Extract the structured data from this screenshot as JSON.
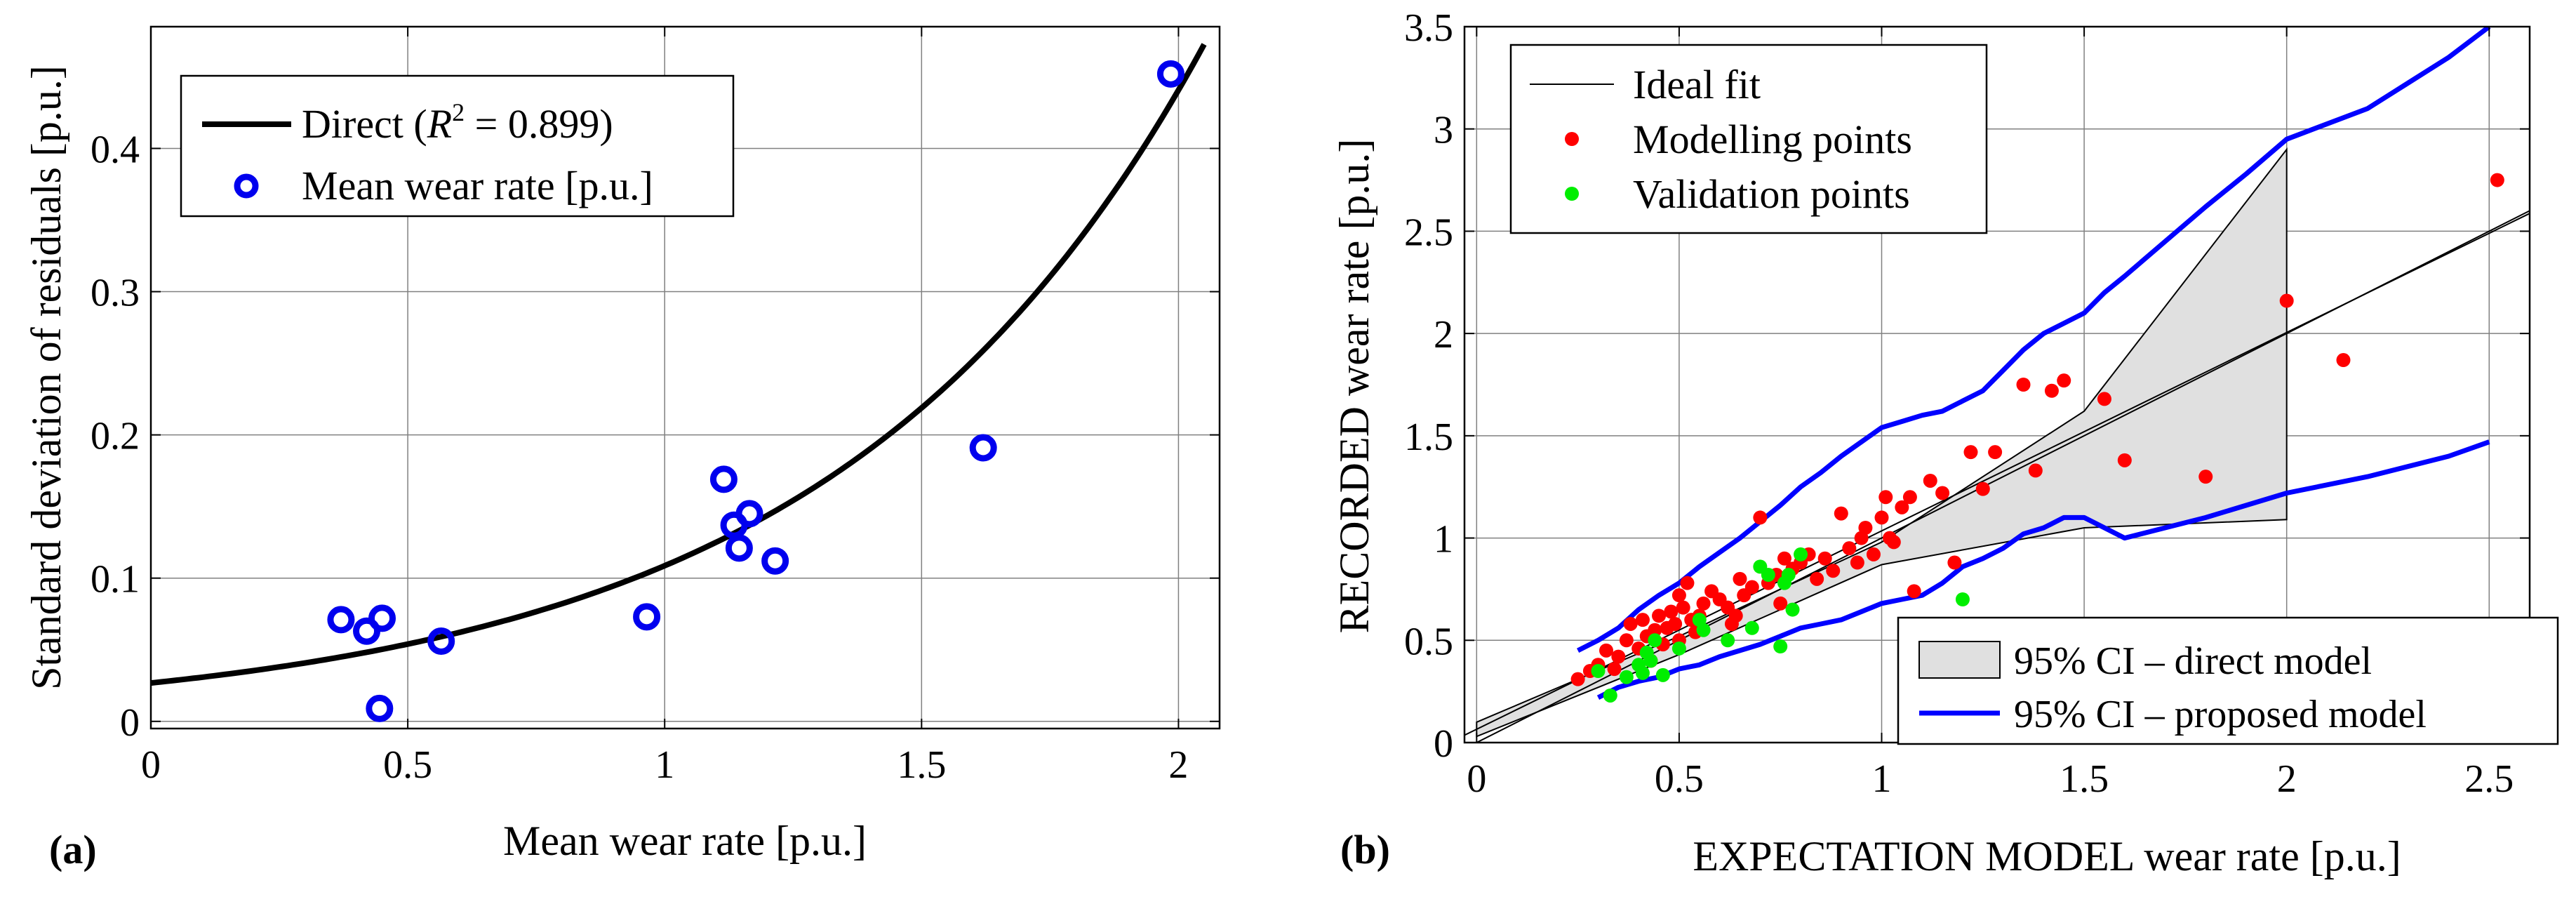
{
  "chart_data": [
    {
      "type": "scatter",
      "panel_label": "(a)",
      "xlabel": "Mean wear rate [p.u.]",
      "ylabel": "Standard deviation of residuals [p.u.]",
      "xlim": [
        0,
        2.08
      ],
      "ylim": [
        -0.005,
        0.485
      ],
      "grid": true,
      "xticks": [
        0,
        0.5,
        1,
        1.5,
        2
      ],
      "xtick_labels": [
        "0",
        "0.5",
        "1",
        "1.5",
        "2"
      ],
      "yticks": [
        0,
        0.1,
        0.2,
        0.3,
        0.4
      ],
      "ytick_labels": [
        "0",
        "0.1",
        "0.2",
        "0.3",
        "0.4"
      ],
      "legend_position": "top-left",
      "legend": {
        "fit_prefix": "Direct (",
        "fit_r": "R",
        "fit_sup": "2",
        "fit_suffix": " = 0.899)",
        "points": "Mean wear rate [p.u.]"
      },
      "fit_curve": {
        "a": 0.0268,
        "b": 1.4,
        "x_range": [
          0,
          2.05
        ]
      },
      "points": [
        [
          0.37,
          0.071
        ],
        [
          0.42,
          0.063
        ],
        [
          0.45,
          0.072
        ],
        [
          0.445,
          0.009
        ],
        [
          0.565,
          0.056
        ],
        [
          0.965,
          0.073
        ],
        [
          1.115,
          0.169
        ],
        [
          1.145,
          0.121
        ],
        [
          1.135,
          0.137
        ],
        [
          1.165,
          0.145
        ],
        [
          1.215,
          0.112
        ],
        [
          1.62,
          0.191
        ],
        [
          1.985,
          0.452
        ]
      ],
      "point_color": "#0000ee"
    },
    {
      "type": "scatter",
      "panel_label": "(b)",
      "xlabel": "EXPECTATION MODEL wear rate [p.u.]",
      "ylabel": "RECORDED  wear rate [p.u.]",
      "xlim": [
        -0.03,
        2.6
      ],
      "ylim": [
        0,
        3.5
      ],
      "grid": true,
      "xticks": [
        0,
        0.5,
        1,
        1.5,
        2,
        2.5
      ],
      "xtick_labels": [
        "0",
        "0.5",
        "1",
        "1.5",
        "2",
        "2.5"
      ],
      "yticks": [
        0,
        0.5,
        1,
        1.5,
        2,
        2.5,
        3,
        3.5
      ],
      "ytick_labels": [
        "0",
        "0.5",
        "1",
        "1.5",
        "2",
        "2.5",
        "3",
        "3.5"
      ],
      "legend_top": {
        "position": "top-left",
        "ideal": "Ideal fit",
        "modelling": "Modelling points",
        "validation": "Validation points"
      },
      "legend_bottom": {
        "position": "bottom-right",
        "ci_direct": "95% CI – direct model",
        "ci_proposed": "95% CI – proposed model"
      },
      "ideal_line": {
        "slope": 1.0,
        "intercept": 0.0
      },
      "center_line": {
        "slope": 0.97,
        "intercept": 0.065
      },
      "ci_direct_upper": [
        [
          0,
          0.1
        ],
        [
          0.5,
          0.52
        ],
        [
          1,
          0.98
        ],
        [
          1.5,
          1.62
        ],
        [
          2,
          2.9
        ]
      ],
      "ci_direct_lower": [
        [
          0,
          0.03
        ],
        [
          0.5,
          0.43
        ],
        [
          1,
          0.87
        ],
        [
          1.5,
          1.05
        ],
        [
          2,
          1.09
        ]
      ],
      "ci_proposed_upper": [
        [
          0.25,
          0.45
        ],
        [
          0.3,
          0.5
        ],
        [
          0.35,
          0.56
        ],
        [
          0.4,
          0.65
        ],
        [
          0.45,
          0.72
        ],
        [
          0.5,
          0.78
        ],
        [
          0.55,
          0.86
        ],
        [
          0.6,
          0.93
        ],
        [
          0.65,
          1.0
        ],
        [
          0.7,
          1.08
        ],
        [
          0.75,
          1.16
        ],
        [
          0.8,
          1.25
        ],
        [
          0.85,
          1.32
        ],
        [
          0.9,
          1.4
        ],
        [
          0.95,
          1.47
        ],
        [
          1.0,
          1.54
        ],
        [
          1.05,
          1.57
        ],
        [
          1.1,
          1.6
        ],
        [
          1.15,
          1.62
        ],
        [
          1.2,
          1.67
        ],
        [
          1.25,
          1.72
        ],
        [
          1.3,
          1.82
        ],
        [
          1.35,
          1.92
        ],
        [
          1.4,
          2.0
        ],
        [
          1.45,
          2.05
        ],
        [
          1.5,
          2.1
        ],
        [
          1.55,
          2.2
        ],
        [
          1.6,
          2.28
        ],
        [
          1.7,
          2.45
        ],
        [
          1.8,
          2.62
        ],
        [
          1.9,
          2.78
        ],
        [
          2.0,
          2.95
        ],
        [
          2.2,
          3.1
        ],
        [
          2.4,
          3.35
        ],
        [
          2.5,
          3.5
        ]
      ],
      "ci_proposed_lower": [
        [
          0.3,
          0.22
        ],
        [
          0.35,
          0.27
        ],
        [
          0.4,
          0.3
        ],
        [
          0.45,
          0.32
        ],
        [
          0.5,
          0.36
        ],
        [
          0.55,
          0.38
        ],
        [
          0.6,
          0.42
        ],
        [
          0.65,
          0.45
        ],
        [
          0.7,
          0.48
        ],
        [
          0.75,
          0.52
        ],
        [
          0.8,
          0.56
        ],
        [
          0.85,
          0.58
        ],
        [
          0.9,
          0.6
        ],
        [
          0.95,
          0.64
        ],
        [
          1.0,
          0.68
        ],
        [
          1.05,
          0.7
        ],
        [
          1.1,
          0.72
        ],
        [
          1.15,
          0.78
        ],
        [
          1.2,
          0.86
        ],
        [
          1.25,
          0.9
        ],
        [
          1.3,
          0.95
        ],
        [
          1.35,
          1.02
        ],
        [
          1.4,
          1.05
        ],
        [
          1.45,
          1.1
        ],
        [
          1.5,
          1.1
        ],
        [
          1.55,
          1.05
        ],
        [
          1.6,
          1.0
        ],
        [
          1.7,
          1.05
        ],
        [
          1.8,
          1.1
        ],
        [
          2.0,
          1.22
        ],
        [
          2.2,
          1.3
        ],
        [
          2.4,
          1.4
        ],
        [
          2.5,
          1.47
        ]
      ],
      "modelling_points": [
        [
          0.25,
          0.31
        ],
        [
          0.28,
          0.35
        ],
        [
          0.3,
          0.38
        ],
        [
          0.32,
          0.45
        ],
        [
          0.34,
          0.36
        ],
        [
          0.35,
          0.42
        ],
        [
          0.37,
          0.5
        ],
        [
          0.38,
          0.58
        ],
        [
          0.4,
          0.46
        ],
        [
          0.41,
          0.6
        ],
        [
          0.42,
          0.52
        ],
        [
          0.43,
          0.4
        ],
        [
          0.44,
          0.55
        ],
        [
          0.45,
          0.62
        ],
        [
          0.46,
          0.48
        ],
        [
          0.47,
          0.56
        ],
        [
          0.48,
          0.64
        ],
        [
          0.49,
          0.58
        ],
        [
          0.5,
          0.5
        ],
        [
          0.5,
          0.72
        ],
        [
          0.51,
          0.66
        ],
        [
          0.52,
          0.78
        ],
        [
          0.53,
          0.6
        ],
        [
          0.54,
          0.54
        ],
        [
          0.55,
          0.62
        ],
        [
          0.56,
          0.68
        ],
        [
          0.58,
          0.74
        ],
        [
          0.6,
          0.7
        ],
        [
          0.62,
          0.66
        ],
        [
          0.63,
          0.58
        ],
        [
          0.64,
          0.62
        ],
        [
          0.65,
          0.8
        ],
        [
          0.66,
          0.72
        ],
        [
          0.68,
          0.76
        ],
        [
          0.7,
          1.1
        ],
        [
          0.72,
          0.78
        ],
        [
          0.74,
          0.82
        ],
        [
          0.75,
          0.68
        ],
        [
          0.76,
          0.9
        ],
        [
          0.78,
          0.85
        ],
        [
          0.8,
          0.88
        ],
        [
          0.82,
          0.92
        ],
        [
          0.84,
          0.8
        ],
        [
          0.86,
          0.9
        ],
        [
          0.88,
          0.84
        ],
        [
          0.9,
          1.12
        ],
        [
          0.92,
          0.95
        ],
        [
          0.94,
          0.88
        ],
        [
          0.95,
          1.0
        ],
        [
          0.96,
          1.05
        ],
        [
          0.98,
          0.92
        ],
        [
          1.0,
          1.1
        ],
        [
          1.01,
          1.2
        ],
        [
          1.02,
          1.0
        ],
        [
          1.03,
          0.98
        ],
        [
          1.05,
          1.15
        ],
        [
          1.07,
          1.2
        ],
        [
          1.08,
          0.74
        ],
        [
          1.12,
          1.28
        ],
        [
          1.15,
          1.22
        ],
        [
          1.18,
          0.88
        ],
        [
          1.22,
          1.42
        ],
        [
          1.25,
          1.24
        ],
        [
          1.28,
          1.42
        ],
        [
          1.35,
          1.75
        ],
        [
          1.38,
          1.33
        ],
        [
          1.42,
          1.72
        ],
        [
          1.45,
          1.77
        ],
        [
          1.55,
          1.68
        ],
        [
          1.6,
          1.38
        ],
        [
          1.8,
          1.3
        ],
        [
          2.0,
          2.16
        ],
        [
          2.14,
          1.87
        ],
        [
          2.52,
          2.75
        ]
      ],
      "validation_points": [
        [
          0.3,
          0.35
        ],
        [
          0.33,
          0.23
        ],
        [
          0.37,
          0.32
        ],
        [
          0.4,
          0.38
        ],
        [
          0.41,
          0.34
        ],
        [
          0.42,
          0.44
        ],
        [
          0.43,
          0.4
        ],
        [
          0.44,
          0.5
        ],
        [
          0.46,
          0.33
        ],
        [
          0.5,
          0.46
        ],
        [
          0.55,
          0.6
        ],
        [
          0.56,
          0.55
        ],
        [
          0.62,
          0.5
        ],
        [
          0.68,
          0.56
        ],
        [
          0.7,
          0.86
        ],
        [
          0.72,
          0.82
        ],
        [
          0.75,
          0.47
        ],
        [
          0.76,
          0.78
        ],
        [
          0.77,
          0.82
        ],
        [
          0.78,
          0.65
        ],
        [
          0.8,
          0.92
        ],
        [
          1.2,
          0.7
        ]
      ],
      "modelling_color": "#ff0000",
      "validation_color": "#00ee00",
      "ci_proposed_color": "#0000ff",
      "ci_direct_fill": "#e0e0e0"
    }
  ]
}
